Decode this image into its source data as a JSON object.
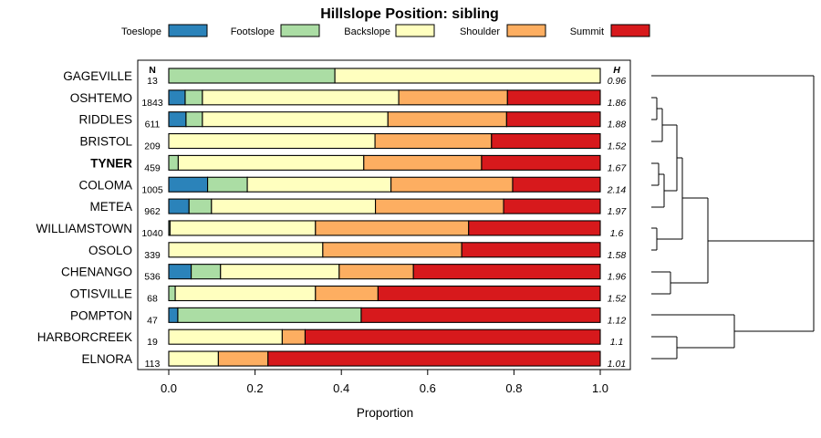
{
  "chart_data": {
    "type": "bar",
    "stacked": true,
    "orientation": "horizontal",
    "title": "Hillslope Position: sibling",
    "xlabel": "Proportion",
    "ylabel": "",
    "xlim": [
      0,
      1
    ],
    "xticks": [
      "0.0",
      "0.2",
      "0.4",
      "0.6",
      "0.8",
      "1.0"
    ],
    "xtick_values": [
      0,
      0.2,
      0.4,
      0.6,
      0.8,
      1.0
    ],
    "n_header": "N",
    "h_header": "H",
    "highlighted": "TYNER",
    "legend_position": "top",
    "categories": [
      "GAGEVILLE",
      "OSHTEMO",
      "RIDDLES",
      "BRISTOL",
      "TYNER",
      "COLOMA",
      "METEA",
      "WILLIAMSTOWN",
      "OSOLO",
      "CHENANGO",
      "OTISVILLE",
      "POMPTON",
      "HARBORCREEK",
      "ELNORA"
    ],
    "n": [
      "13",
      "1843",
      "611",
      "209",
      "459",
      "1005",
      "962",
      "1040",
      "339",
      "536",
      "68",
      "47",
      "19",
      "113"
    ],
    "h": [
      "0.96",
      "1.86",
      "1.88",
      "1.52",
      "1.67",
      "2.14",
      "1.97",
      "1.6",
      "1.58",
      "1.96",
      "1.52",
      "1.12",
      "1.1",
      "1.01"
    ],
    "series": [
      {
        "name": "Toeslope",
        "color": "#2b83ba",
        "values": [
          0.0,
          0.038,
          0.04,
          0.0,
          0.0,
          0.09,
          0.047,
          0.0,
          0.0,
          0.052,
          0.0,
          0.021,
          0.0,
          0.0
        ]
      },
      {
        "name": "Footslope",
        "color": "#abdda4",
        "values": [
          0.385,
          0.04,
          0.038,
          0.0,
          0.022,
          0.092,
          0.052,
          0.003,
          0.0,
          0.068,
          0.015,
          0.425,
          0.0,
          0.0
        ]
      },
      {
        "name": "Backslope",
        "color": "#ffffbf",
        "values": [
          0.615,
          0.455,
          0.43,
          0.478,
          0.43,
          0.333,
          0.38,
          0.337,
          0.357,
          0.275,
          0.325,
          0.0,
          0.263,
          0.115
        ]
      },
      {
        "name": "Shoulder",
        "color": "#fdae61",
        "values": [
          0.0,
          0.252,
          0.275,
          0.27,
          0.273,
          0.282,
          0.297,
          0.355,
          0.322,
          0.172,
          0.145,
          0.0,
          0.053,
          0.115
        ]
      },
      {
        "name": "Summit",
        "color": "#d7191c",
        "values": [
          0.0,
          0.215,
          0.217,
          0.252,
          0.275,
          0.203,
          0.224,
          0.305,
          0.321,
          0.433,
          0.515,
          0.554,
          0.684,
          0.77
        ]
      }
    ],
    "dendrogram": "hierarchical clustering of series (unlabeled)"
  }
}
